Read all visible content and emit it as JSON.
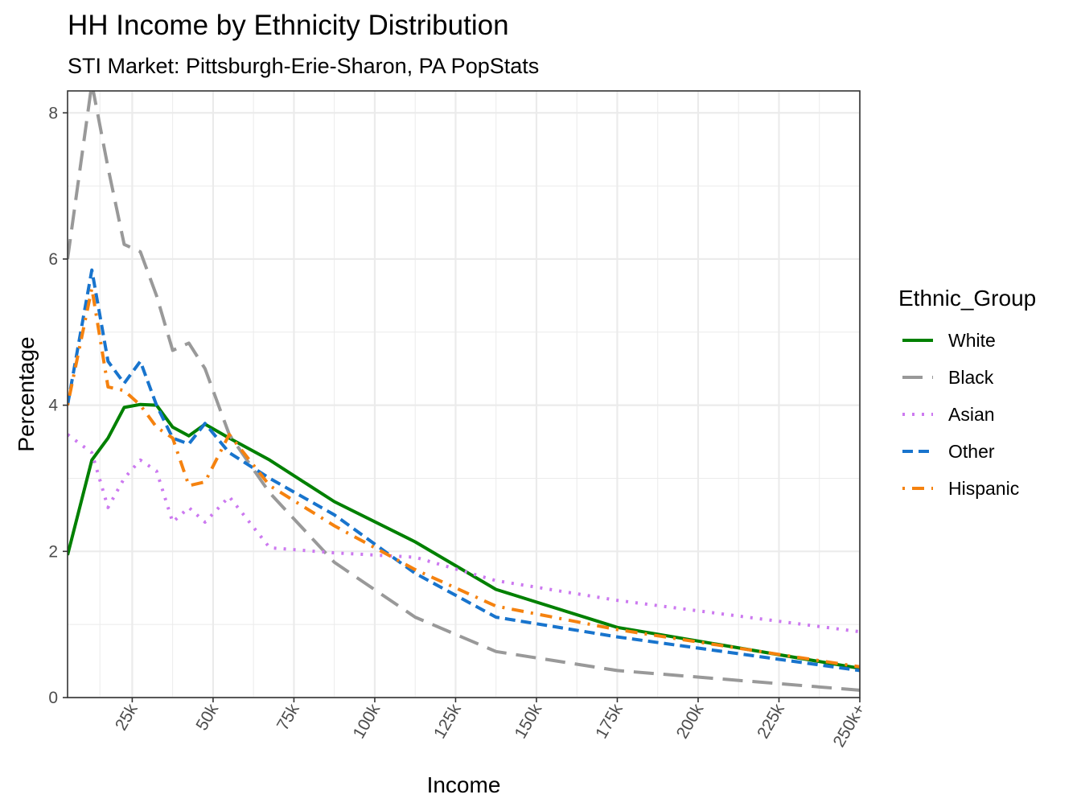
{
  "chart_data": {
    "type": "line",
    "title": "HH Income by Ethnicity Distribution",
    "subtitle": "STI Market: Pittsburgh-Erie-Sharon, PA PopStats",
    "xlabel": "Income",
    "ylabel": "Percentage",
    "xlim": [
      5000,
      250000
    ],
    "ylim": [
      0,
      8.3
    ],
    "x_tick_values": [
      25000,
      50000,
      75000,
      100000,
      125000,
      150000,
      175000,
      200000,
      225000,
      250000
    ],
    "x_tick_labels": [
      "25k",
      "50k",
      "75k",
      "100k",
      "125k",
      "150k",
      "175k",
      "200k",
      "225k",
      "250k+"
    ],
    "y_tick_values": [
      0,
      2,
      4,
      6,
      8
    ],
    "y_tick_labels": [
      "0",
      "2",
      "4",
      "6",
      "8"
    ],
    "grid": true,
    "legend": {
      "title": "Ethnic_Group",
      "position": "right"
    },
    "x": [
      5000,
      12500,
      17500,
      22500,
      27500,
      32500,
      37500,
      42500,
      47500,
      55000,
      67500,
      87500,
      112500,
      137500,
      175000,
      250000
    ],
    "series": [
      {
        "name": "White",
        "color": "#008000",
        "dash": "solid",
        "values": [
          1.95,
          3.25,
          3.55,
          3.97,
          4.01,
          4.0,
          3.7,
          3.58,
          3.74,
          3.55,
          3.25,
          2.68,
          2.13,
          1.48,
          0.96,
          0.4
        ]
      },
      {
        "name": "Black",
        "color": "#999999",
        "dash": "longdash",
        "values": [
          6.0,
          8.4,
          7.25,
          6.2,
          6.1,
          5.5,
          4.75,
          4.85,
          4.5,
          3.6,
          2.8,
          1.85,
          1.1,
          0.63,
          0.37,
          0.1
        ]
      },
      {
        "name": "Asian",
        "color": "#cc79f0",
        "dash": "dotted",
        "values": [
          3.6,
          3.35,
          2.6,
          3.0,
          3.25,
          3.1,
          2.4,
          2.6,
          2.4,
          2.75,
          2.05,
          1.98,
          1.92,
          1.6,
          1.33,
          0.9
        ]
      },
      {
        "name": "Other",
        "color": "#1874cd",
        "dash": "dashed",
        "values": [
          4.0,
          5.85,
          4.6,
          4.3,
          4.6,
          4.0,
          3.55,
          3.47,
          3.75,
          3.35,
          3.0,
          2.5,
          1.7,
          1.1,
          0.83,
          0.37
        ]
      },
      {
        "name": "Hispanic",
        "color": "#f5820f",
        "dash": "dotdash",
        "values": [
          4.0,
          5.6,
          4.25,
          4.2,
          4.0,
          3.7,
          3.55,
          2.9,
          2.95,
          3.6,
          2.9,
          2.35,
          1.75,
          1.25,
          0.93,
          0.42
        ]
      }
    ]
  }
}
